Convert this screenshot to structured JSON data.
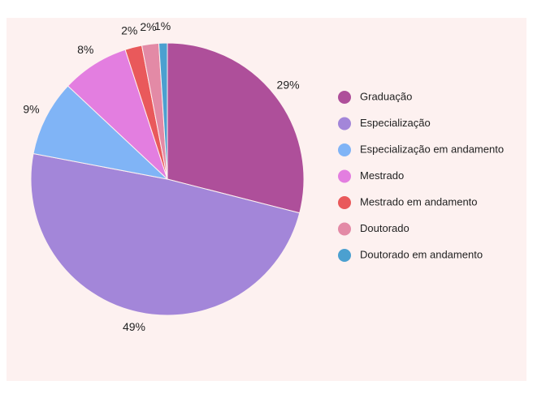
{
  "chart_data": {
    "type": "pie",
    "categories": [
      "Graduação",
      "Especialização",
      "Especialização em andamento",
      "Mestrado",
      "Mestrado em andamento",
      "Doutorado",
      "Doutorado em andamento"
    ],
    "values": [
      29,
      49,
      9,
      8,
      2,
      2,
      1
    ],
    "value_labels": [
      "29%",
      "49%",
      "9%",
      "8%",
      "2%",
      "2%",
      "1%"
    ],
    "colors": [
      "#ae4f9a",
      "#a386d9",
      "#80b4f6",
      "#e37ee0",
      "#e9595b",
      "#e38aa6",
      "#4ba0d0"
    ],
    "legend": "right"
  }
}
